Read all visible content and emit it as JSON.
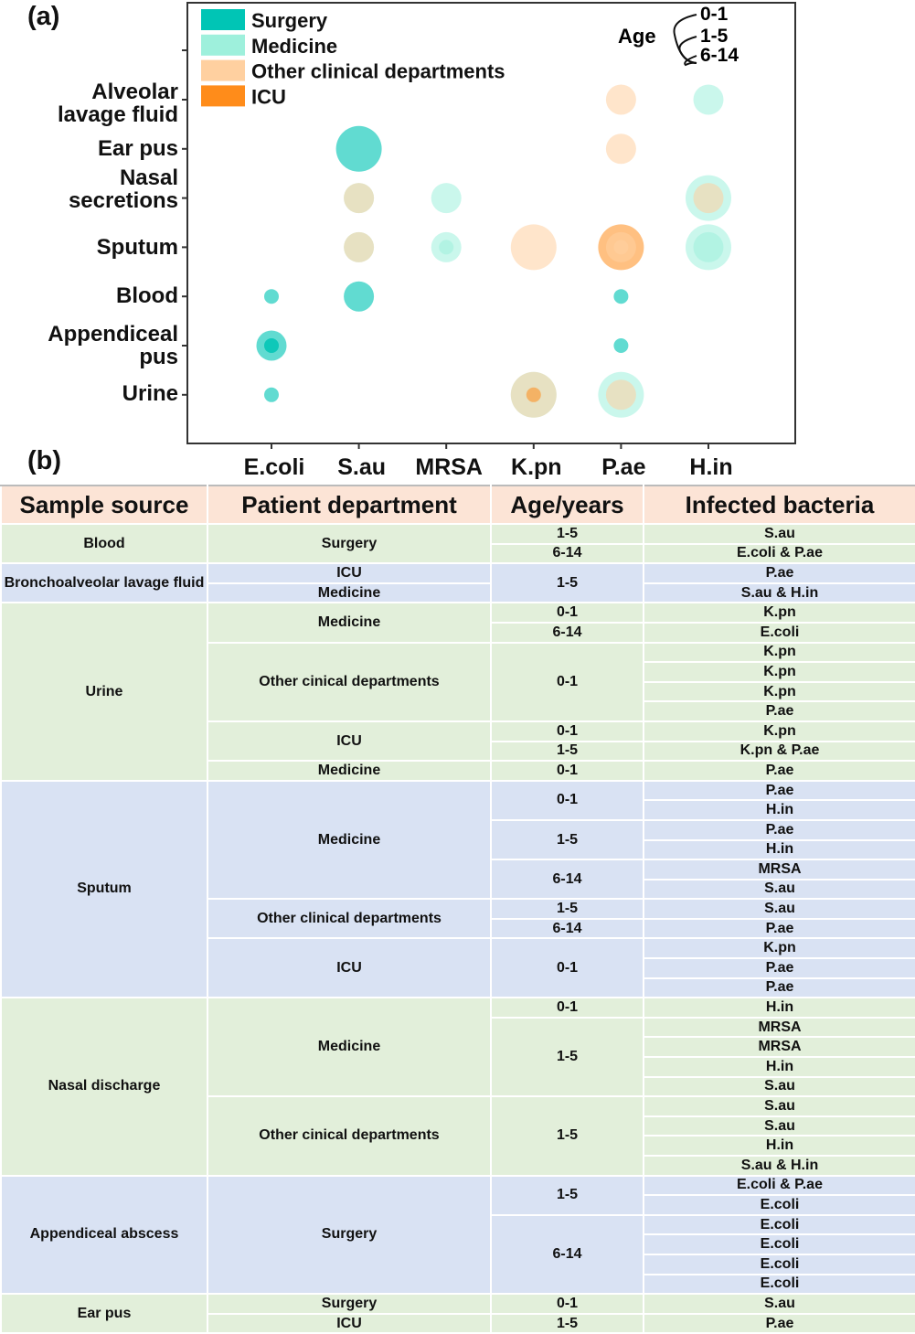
{
  "panel_labels": {
    "a": "(a)",
    "b": "(b)"
  },
  "chart_data": {
    "type": "bubble",
    "title": "",
    "x_categories": [
      "E.coli",
      "S.au",
      "MRSA",
      "K.pn",
      "P.ae",
      "H.in"
    ],
    "y_categories": [
      "Alveolar\nlavage fluid",
      "Ear pus",
      "Nasal\nsecretions",
      "Sputum",
      "Blood",
      "Appendiceal\npus",
      "Urine"
    ],
    "legend": {
      "departments": [
        {
          "name": "Surgery",
          "color": "#00c5b5"
        },
        {
          "name": "Medicine",
          "color": "#9ef0dc"
        },
        {
          "name": "Other clinical departments",
          "color": "#ffd0a0"
        },
        {
          "name": "ICU",
          "color": "#ff8c1a"
        }
      ],
      "age_title": "Age",
      "ages": [
        "0-1",
        "1-5",
        "6-14"
      ]
    },
    "bubbles": [
      {
        "x": "P.ae",
        "y": "Alveolar\nlavage fluid",
        "dept": "Other clinical departments",
        "age": "1-5"
      },
      {
        "x": "H.in",
        "y": "Alveolar\nlavage fluid",
        "dept": "Medicine",
        "age": "1-5"
      },
      {
        "x": "S.au",
        "y": "Ear pus",
        "dept": "Surgery",
        "age": "0-1"
      },
      {
        "x": "P.ae",
        "y": "Ear pus",
        "dept": "Other clinical departments",
        "age": "1-5"
      },
      {
        "x": "S.au",
        "y": "Nasal\nsecretions",
        "dept": "Medicine",
        "age": "1-5"
      },
      {
        "x": "S.au",
        "y": "Nasal\nsecretions",
        "dept": "Other clinical departments",
        "age": "1-5"
      },
      {
        "x": "MRSA",
        "y": "Nasal\nsecretions",
        "dept": "Medicine",
        "age": "1-5"
      },
      {
        "x": "H.in",
        "y": "Nasal\nsecretions",
        "dept": "Medicine",
        "age": "0-1"
      },
      {
        "x": "H.in",
        "y": "Nasal\nsecretions",
        "dept": "Other clinical departments",
        "age": "1-5"
      },
      {
        "x": "S.au",
        "y": "Sputum",
        "dept": "Medicine",
        "age": "1-5"
      },
      {
        "x": "S.au",
        "y": "Sputum",
        "dept": "Other clinical departments",
        "age": "1-5"
      },
      {
        "x": "MRSA",
        "y": "Sputum",
        "dept": "Medicine",
        "age": "1-5"
      },
      {
        "x": "MRSA",
        "y": "Sputum",
        "dept": "Medicine",
        "age": "6-14"
      },
      {
        "x": "K.pn",
        "y": "Sputum",
        "dept": "Other clinical departments",
        "age": "0-1"
      },
      {
        "x": "P.ae",
        "y": "Sputum",
        "dept": "ICU",
        "age": "0-1"
      },
      {
        "x": "P.ae",
        "y": "Sputum",
        "dept": "Other clinical departments",
        "age": "1-5"
      },
      {
        "x": "P.ae",
        "y": "Sputum",
        "dept": "Other clinical departments",
        "age": "6-14"
      },
      {
        "x": "H.in",
        "y": "Sputum",
        "dept": "Medicine",
        "age": "0-1"
      },
      {
        "x": "H.in",
        "y": "Sputum",
        "dept": "Medicine",
        "age": "1-5"
      },
      {
        "x": "E.coli",
        "y": "Blood",
        "dept": "Surgery",
        "age": "6-14"
      },
      {
        "x": "S.au",
        "y": "Blood",
        "dept": "Surgery",
        "age": "1-5"
      },
      {
        "x": "P.ae",
        "y": "Blood",
        "dept": "Surgery",
        "age": "6-14"
      },
      {
        "x": "E.coli",
        "y": "Appendiceal\npus",
        "dept": "Surgery",
        "age": "1-5"
      },
      {
        "x": "E.coli",
        "y": "Appendiceal\npus",
        "dept": "Surgery",
        "age": "6-14"
      },
      {
        "x": "E.coli",
        "y": "Appendiceal\npus",
        "dept": "Surgery",
        "age": "6-14"
      },
      {
        "x": "P.ae",
        "y": "Appendiceal\npus",
        "dept": "Surgery",
        "age": "6-14"
      },
      {
        "x": "E.coli",
        "y": "Urine",
        "dept": "Surgery",
        "age": "6-14"
      },
      {
        "x": "K.pn",
        "y": "Urine",
        "dept": "Medicine",
        "age": "0-1"
      },
      {
        "x": "K.pn",
        "y": "Urine",
        "dept": "Other clinical departments",
        "age": "0-1"
      },
      {
        "x": "K.pn",
        "y": "Urine",
        "dept": "ICU",
        "age": "6-14"
      },
      {
        "x": "P.ae",
        "y": "Urine",
        "dept": "Medicine",
        "age": "0-1"
      },
      {
        "x": "P.ae",
        "y": "Urine",
        "dept": "Other clinical departments",
        "age": "1-5"
      }
    ]
  },
  "table": {
    "headers": [
      "Sample source",
      "Patient department",
      "Age/years",
      "Infected bacteria"
    ],
    "groups": [
      {
        "shade": "green",
        "rows": [
          [
            "Blood",
            "Surgery",
            "1-5",
            "S.au"
          ],
          [
            null,
            null,
            "6-14",
            "E.coli & P.ae"
          ]
        ]
      },
      {
        "shade": "blue",
        "rows": [
          [
            "Bronchoalveolar lavage fluid",
            "ICU",
            "1-5",
            "P.ae"
          ],
          [
            null,
            "Medicine",
            null,
            "S.au & H.in"
          ]
        ]
      },
      {
        "shade": "green",
        "rows": [
          [
            "Urine",
            "Medicine",
            "0-1",
            "K.pn"
          ],
          [
            null,
            null,
            "6-14",
            "E.coli"
          ],
          [
            null,
            "Other cinical departments",
            "0-1",
            "K.pn"
          ],
          [
            null,
            null,
            null,
            "K.pn"
          ],
          [
            null,
            null,
            null,
            "K.pn"
          ],
          [
            null,
            null,
            null,
            "P.ae"
          ],
          [
            null,
            "ICU",
            "0-1",
            "K.pn"
          ],
          [
            null,
            null,
            "1-5",
            "K.pn & P.ae"
          ],
          [
            null,
            "Medicine",
            "0-1",
            "P.ae"
          ]
        ]
      },
      {
        "shade": "blue",
        "rows": [
          [
            "Sputum",
            "Medicine",
            "0-1",
            "P.ae"
          ],
          [
            null,
            null,
            null,
            "H.in"
          ],
          [
            null,
            null,
            "1-5",
            "P.ae"
          ],
          [
            null,
            null,
            null,
            "H.in"
          ],
          [
            null,
            null,
            "6-14",
            "MRSA"
          ],
          [
            null,
            null,
            null,
            "S.au"
          ],
          [
            null,
            "Other clinical departments",
            "1-5",
            "S.au"
          ],
          [
            null,
            null,
            "6-14",
            "P.ae"
          ],
          [
            null,
            "ICU",
            "0-1",
            "K.pn"
          ],
          [
            null,
            null,
            null,
            "P.ae"
          ],
          [
            null,
            null,
            null,
            "P.ae"
          ]
        ]
      },
      {
        "shade": "green",
        "rows": [
          [
            "Nasal discharge",
            "Medicine",
            "0-1",
            "H.in"
          ],
          [
            null,
            null,
            "1-5",
            "MRSA"
          ],
          [
            null,
            null,
            null,
            "MRSA"
          ],
          [
            null,
            null,
            null,
            "H.in"
          ],
          [
            null,
            null,
            null,
            "S.au"
          ],
          [
            null,
            "Other cinical departments",
            "1-5",
            "S.au"
          ],
          [
            null,
            null,
            null,
            "S.au"
          ],
          [
            null,
            null,
            null,
            "H.in"
          ],
          [
            null,
            null,
            null,
            "S.au & H.in"
          ]
        ]
      },
      {
        "shade": "blue",
        "rows": [
          [
            "Appendiceal abscess",
            "Surgery",
            "1-5",
            "E.coli & P.ae"
          ],
          [
            null,
            null,
            null,
            "E.coli"
          ],
          [
            null,
            null,
            "6-14",
            "E.coli"
          ],
          [
            null,
            null,
            null,
            "E.coli"
          ],
          [
            null,
            null,
            null,
            "E.coli"
          ],
          [
            null,
            null,
            null,
            "E.coli"
          ]
        ]
      },
      {
        "shade": "green",
        "rows": [
          [
            "Ear pus",
            "Surgery",
            "0-1",
            "S.au"
          ],
          [
            null,
            "ICU",
            "1-5",
            "P.ae"
          ]
        ]
      }
    ]
  }
}
